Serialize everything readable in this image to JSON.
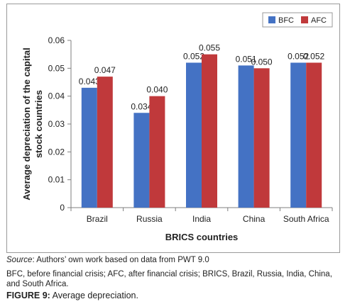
{
  "chart_data": {
    "type": "bar",
    "categories": [
      "Brazil",
      "Russia",
      "India",
      "China",
      "South Africa"
    ],
    "series": [
      {
        "name": "BFC",
        "values": [
          0.043,
          0.034,
          0.052,
          0.051,
          0.052
        ],
        "color": "#4472c4"
      },
      {
        "name": "AFC",
        "values": [
          0.047,
          0.04,
          0.055,
          0.05,
          0.052
        ],
        "color": "#c0393b"
      }
    ],
    "data_labels": [
      [
        "0.043",
        "0.034",
        "0.052",
        "0.051",
        "0.052"
      ],
      [
        "0.047",
        "0.040",
        "0.055",
        "0.050",
        "0.052"
      ]
    ],
    "xlabel": "BRICS countries",
    "ylabel": "Average depreciation of the capital stock countries",
    "ylim": [
      0,
      0.06
    ],
    "yticks": [
      "0",
      "0.01",
      "0.02",
      "0.03",
      "0.04",
      "0.05",
      "0.06"
    ],
    "grid": false,
    "legend_position": "top-right"
  },
  "caption": {
    "source_label": "Source",
    "source_text": ": Authors’ own work based on data from PWT 9.0",
    "abbreviations": "BFC, before financial crisis; AFC, after financial crisis; BRICS, Brazil, Russia, India, China, and South Africa.",
    "figure_label": "FIGURE 9:",
    "figure_title": " Average depreciation."
  }
}
